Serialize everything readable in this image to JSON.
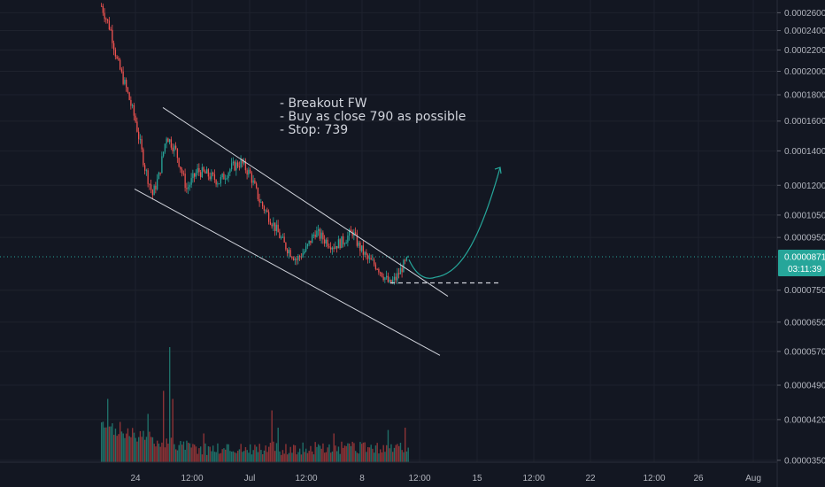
{
  "chart_data": {
    "type": "candlestick",
    "grid": true,
    "price_scale": "log",
    "price_axis": {
      "ticks": [
        "0.0002600",
        "0.0002400",
        "0.0002200",
        "0.0002000",
        "0.0001800",
        "0.0001600",
        "0.0001400",
        "0.0001200",
        "0.0001050",
        "0.0000950",
        "0.0000750",
        "0.0000650",
        "0.0000570",
        "0.0000490",
        "0.0000420",
        "0.0000350"
      ],
      "ylim": [
        3.47e-05,
        0.000272
      ]
    },
    "time_axis": {
      "ticks": [
        "24",
        "12:00",
        "Jul",
        "12:00",
        "8",
        "12:00",
        "15",
        "12:00",
        "22",
        "12:00",
        "26",
        "Aug"
      ]
    },
    "current_price": {
      "value": 8.71e-05,
      "label": "0.0000871",
      "countdown": "03:11:39",
      "color": "#26a69a"
    },
    "annotation": {
      "lines": [
        "- Breakout FW",
        "- Buy as close 790 as possible",
        "- Stop: 739"
      ]
    },
    "drawings": {
      "upper_trendline": {
        "from": {
          "x": "24",
          "y": 0.00017
        },
        "to": {
          "x": "8",
          "y": 7.4e-05
        }
      },
      "lower_trendline": {
        "from": {
          "x": "24",
          "y": 0.000118
        },
        "to": {
          "x": "8",
          "y": 5.75e-05
        }
      },
      "stop_level": {
        "price": 7.39e-05
      },
      "projection": {
        "from": 8.6e-05,
        "low": 7.95e-05,
        "to": 0.00013
      }
    },
    "colors": {
      "background": "#131722",
      "up": "#26a69a",
      "down": "#ef5350",
      "up_volume": "#1f6e67",
      "down_volume": "#8c3336",
      "drawing": "#d1d4dc",
      "projection": "#26a69a",
      "grid": "#1e222d"
    },
    "series_shape": {
      "anchors": [
        [
          0,
          0.000268
        ],
        [
          6,
          0.00024
        ],
        [
          10,
          0.00021
        ],
        [
          16,
          0.000185
        ],
        [
          22,
          0.00016
        ],
        [
          28,
          0.00013
        ],
        [
          33,
          0.000115
        ],
        [
          37,
          0.000125
        ],
        [
          42,
          0.00015
        ],
        [
          48,
          0.00014
        ],
        [
          55,
          0.000118
        ],
        [
          62,
          0.000128
        ],
        [
          68,
          0.000126
        ],
        [
          76,
          0.000122
        ],
        [
          84,
          0.00013
        ],
        [
          90,
          0.000133
        ],
        [
          96,
          0.000126
        ],
        [
          102,
          0.000112
        ],
        [
          110,
          0.000102
        ],
        [
          118,
          9.2e-05
        ],
        [
          126,
          8.6e-05
        ],
        [
          132,
          9e-05
        ],
        [
          138,
          9.75e-05
        ],
        [
          144,
          9.4e-05
        ],
        [
          150,
          9.15e-05
        ],
        [
          156,
          9.35e-05
        ],
        [
          162,
          9.75e-05
        ],
        [
          166,
          9.15e-05
        ],
        [
          172,
          8.6e-05
        ],
        [
          178,
          8.35e-05
        ],
        [
          186,
          7.7e-05
        ],
        [
          190,
          7.9e-05
        ],
        [
          194,
          8.3e-05
        ],
        [
          198,
          8.6e-05
        ]
      ],
      "volume_spikes": [
        [
          4,
          0.55
        ],
        [
          12,
          0.35
        ],
        [
          30,
          0.42
        ],
        [
          40,
          0.62
        ],
        [
          44,
          1.0
        ],
        [
          46,
          0.55
        ],
        [
          66,
          0.25
        ],
        [
          110,
          0.45
        ],
        [
          114,
          0.3
        ],
        [
          150,
          0.25
        ],
        [
          185,
          0.28
        ],
        [
          196,
          0.3
        ]
      ]
    }
  }
}
